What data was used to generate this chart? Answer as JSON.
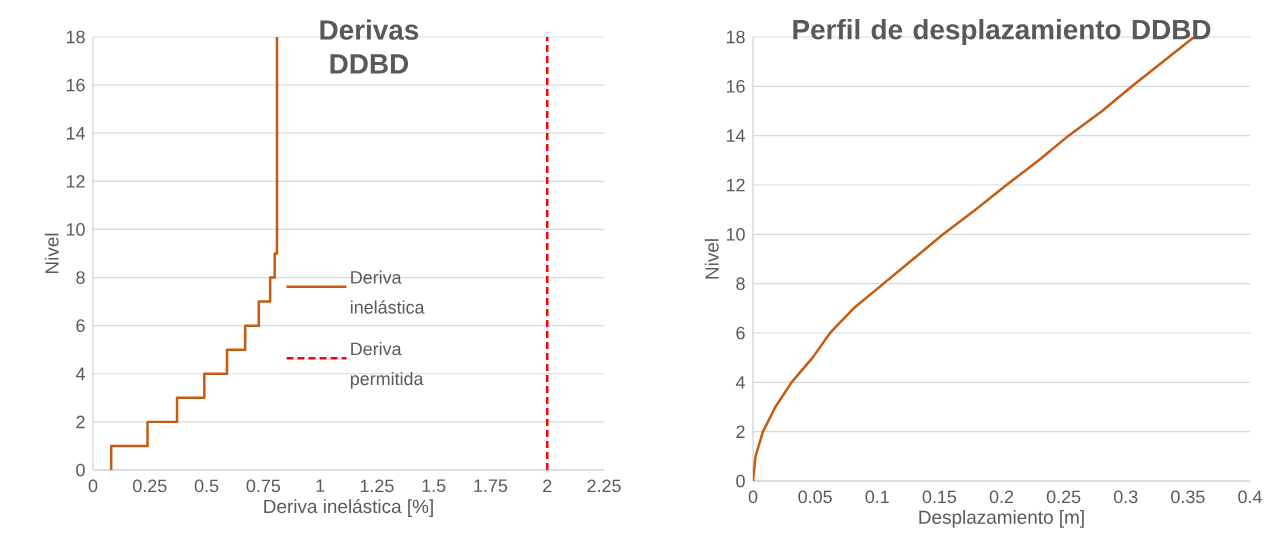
{
  "chart_data": [
    {
      "type": "line",
      "title": "Derivas DDBD",
      "xlabel": "Deriva inelástica [%]",
      "ylabel": "Nivel",
      "xlim": [
        0,
        2.25
      ],
      "ylim": [
        0,
        18
      ],
      "xticks": [
        0,
        0.25,
        0.5,
        0.75,
        1,
        1.25,
        1.5,
        1.75,
        2,
        2.25
      ],
      "yticks": [
        0,
        2,
        4,
        6,
        8,
        10,
        12,
        14,
        16,
        18
      ],
      "grid": "y",
      "legend": "center",
      "series": [
        {
          "name": "Deriva inelástica",
          "color": "#c55a11",
          "line_style": "solid",
          "x": [
            0.08,
            0.08,
            0.24,
            0.24,
            0.37,
            0.37,
            0.49,
            0.49,
            0.59,
            0.59,
            0.67,
            0.67,
            0.73,
            0.73,
            0.78,
            0.78,
            0.8,
            0.8,
            0.81,
            0.81
          ],
          "values": [
            0,
            1,
            1,
            2,
            2,
            3,
            3,
            4,
            4,
            5,
            5,
            6,
            6,
            7,
            7,
            8,
            8,
            9,
            9,
            18
          ]
        },
        {
          "name": "Deriva permitida",
          "color": "#ff0000",
          "line_style": "dashed",
          "x": [
            2,
            2
          ],
          "values": [
            0,
            18
          ]
        }
      ]
    },
    {
      "type": "line",
      "title": "Perfil de desplazamiento DDBD",
      "xlabel": "Desplazamiento [m]",
      "ylabel": "Nivel",
      "xlim": [
        0,
        0.4
      ],
      "ylim": [
        0,
        18
      ],
      "xticks": [
        0,
        0.05,
        0.1,
        0.15,
        0.2,
        0.25,
        0.3,
        0.35,
        0.4
      ],
      "yticks": [
        0,
        2,
        4,
        6,
        8,
        10,
        12,
        14,
        16,
        18
      ],
      "grid": "y",
      "series": [
        {
          "color": "#c55a11",
          "line_style": "solid",
          "x": [
            0,
            0.002,
            0.008,
            0.018,
            0.031,
            0.048,
            0.062,
            0.081,
            0.105,
            0.129,
            0.153,
            0.179,
            0.204,
            0.23,
            0.254,
            0.281,
            0.305,
            0.33,
            0.355
          ],
          "values": [
            0,
            1,
            2,
            3,
            4,
            5,
            6,
            7,
            8,
            9,
            10,
            11,
            12,
            13,
            14,
            15,
            16,
            17,
            18
          ]
        }
      ]
    }
  ]
}
